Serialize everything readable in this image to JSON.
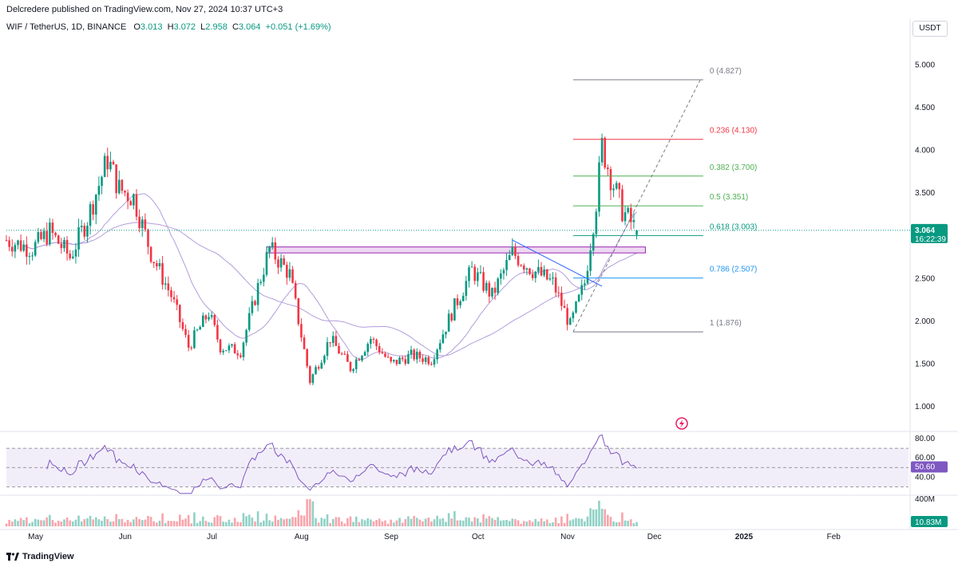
{
  "header": {
    "published": "Delcredere published on TradingView.com, Nov 27, 2024 10:37 UTC+3"
  },
  "legend": {
    "symbol": "WIF / TetherUS, 1D, BINANCE",
    "o_label": "O",
    "o_value": "3.013",
    "h_label": "H",
    "h_value": "3.072",
    "l_label": "L",
    "l_value": "2.958",
    "c_label": "C",
    "c_value": "3.064",
    "change": "+0.051 (+1.69%)"
  },
  "currency": "USDT",
  "colors": {
    "up": "#089981",
    "down": "#f23645",
    "ma_purple": "#b39ddb",
    "rsi_line": "#7e57c2",
    "rsi_band": "#ede7f6",
    "zone_fill": "#e1bee7",
    "zone_border": "#9c27b0",
    "trendline": "#2962ff",
    "fib_0": "#787b86",
    "fib_236": "#f23645",
    "fib_382": "#4caf50",
    "fib_5": "#4caf50",
    "fib_618": "#089981",
    "fib_786": "#2196f3",
    "fib_1": "#787b86"
  },
  "chart_data": {
    "type": "candlestick",
    "symbol": "WIF/USDT",
    "interval": "1D",
    "exchange": "BINANCE",
    "price_axis": {
      "ticks": [
        "5.000",
        "4.500",
        "4.000",
        "3.500",
        "3.000",
        "2.500",
        "2.000",
        "1.500",
        "1.000"
      ],
      "range": [
        0.72,
        5.35
      ]
    },
    "last_price_label": "3.064",
    "countdown_label": "16:22:39",
    "time_axis": {
      "labels": [
        "May",
        "Jun",
        "Jul",
        "Aug",
        "Sep",
        "Oct",
        "Nov",
        "Dec",
        "2025",
        "Feb"
      ]
    },
    "close_series_approx": [
      {
        "date": "2024-04-22",
        "close": 2.95
      },
      {
        "date": "2024-05-01",
        "close": 2.85
      },
      {
        "date": "2024-05-07",
        "close": 3.05
      },
      {
        "date": "2024-05-14",
        "close": 2.75
      },
      {
        "date": "2024-05-20",
        "close": 3.2
      },
      {
        "date": "2024-05-27",
        "close": 3.9
      },
      {
        "date": "2024-05-31",
        "close": 3.55
      },
      {
        "date": "2024-06-05",
        "close": 3.45
      },
      {
        "date": "2024-06-11",
        "close": 2.8
      },
      {
        "date": "2024-06-18",
        "close": 2.3
      },
      {
        "date": "2024-06-24",
        "close": 1.7
      },
      {
        "date": "2024-07-01",
        "close": 2.1
      },
      {
        "date": "2024-07-05",
        "close": 1.7
      },
      {
        "date": "2024-07-12",
        "close": 1.65
      },
      {
        "date": "2024-07-18",
        "close": 2.4
      },
      {
        "date": "2024-07-22",
        "close": 2.85
      },
      {
        "date": "2024-07-29",
        "close": 2.55
      },
      {
        "date": "2024-08-05",
        "close": 1.3
      },
      {
        "date": "2024-08-12",
        "close": 1.8
      },
      {
        "date": "2024-08-19",
        "close": 1.45
      },
      {
        "date": "2024-08-26",
        "close": 1.8
      },
      {
        "date": "2024-09-02",
        "close": 1.5
      },
      {
        "date": "2024-09-09",
        "close": 1.6
      },
      {
        "date": "2024-09-16",
        "close": 1.55
      },
      {
        "date": "2024-09-23",
        "close": 2.1
      },
      {
        "date": "2024-09-30",
        "close": 2.6
      },
      {
        "date": "2024-10-07",
        "close": 2.3
      },
      {
        "date": "2024-10-14",
        "close": 2.8
      },
      {
        "date": "2024-10-21",
        "close": 2.6
      },
      {
        "date": "2024-10-28",
        "close": 2.45
      },
      {
        "date": "2024-11-03",
        "close": 1.95
      },
      {
        "date": "2024-11-08",
        "close": 2.45
      },
      {
        "date": "2024-11-12",
        "close": 3.4
      },
      {
        "date": "2024-11-14",
        "close": 4.05
      },
      {
        "date": "2024-11-17",
        "close": 3.7
      },
      {
        "date": "2024-11-21",
        "close": 3.3
      },
      {
        "date": "2024-11-26",
        "close": 3.064
      }
    ],
    "fibonacci": [
      {
        "level": "0",
        "price": "4.827",
        "label": "0 (4.827)"
      },
      {
        "level": "0.236",
        "price": "4.130",
        "label": "0.236 (4.130)"
      },
      {
        "level": "0.382",
        "price": "3.700",
        "label": "0.382 (3.700)"
      },
      {
        "level": "0.5",
        "price": "3.351",
        "label": "0.5 (3.351)"
      },
      {
        "level": "0.618",
        "price": "3.003",
        "label": "0.618 (3.003)"
      },
      {
        "level": "0.786",
        "price": "2.507",
        "label": "0.786 (2.507)"
      },
      {
        "level": "1",
        "price": "1.876",
        "label": "1 (1.876)"
      }
    ],
    "support_zone": {
      "low": 2.8,
      "high": 2.87
    },
    "rsi": {
      "ticks": [
        "80.00",
        "60.00",
        "40.00"
      ],
      "upper_band": 70,
      "lower_band": 30,
      "current_label": "50.60",
      "range": [
        22,
        85
      ]
    },
    "volume": {
      "axis_label": "400M",
      "current_label": "10.83M"
    }
  },
  "footer": {
    "brand": "TradingView"
  }
}
